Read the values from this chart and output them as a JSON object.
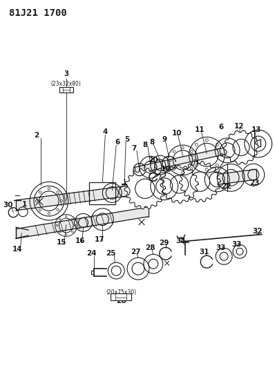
{
  "title": "81J21 1700",
  "bg_color": "#ffffff",
  "line_color": "#1a1a1a",
  "title_fontsize": 10,
  "label_fontsize": 7.5,
  "fig_width": 3.98,
  "fig_height": 5.33,
  "dpi": 100
}
